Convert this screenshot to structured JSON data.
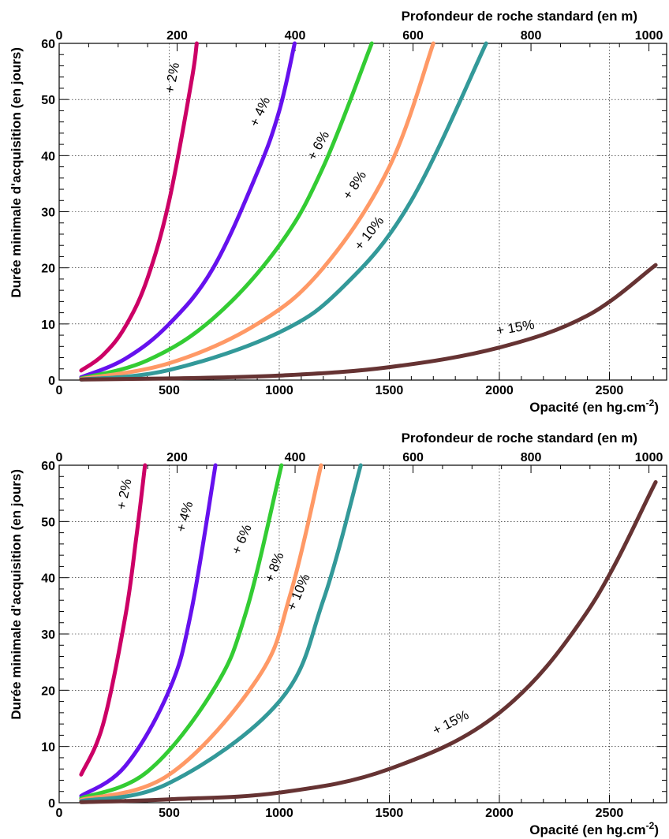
{
  "chart_data": [
    {
      "type": "line",
      "xlabel": "Opacité (en hg.cm",
      "xlabel_sup": "-2",
      "xlabel_end": ")",
      "ylabel": "Durée minimale d'acquisition (en jours)",
      "x2label": "Profondeur de roche standard (en m)",
      "xlim": [
        0,
        2760
      ],
      "ylim": [
        0,
        60
      ],
      "x2lim": [
        0,
        1030
      ],
      "xticks": [
        0,
        500,
        1000,
        1500,
        2000,
        2500
      ],
      "yticks": [
        0,
        10,
        20,
        30,
        40,
        50,
        60
      ],
      "x2ticks": [
        0,
        200,
        400,
        600,
        800,
        1000
      ],
      "grid": true,
      "series": [
        {
          "name": "+ 2%",
          "color": "#cc0066",
          "x": [
            100,
            200,
            300,
            400,
            500,
            600,
            625
          ],
          "y": [
            1.7,
            4.5,
            9.5,
            18,
            32,
            53,
            60
          ],
          "label_at": [
            520,
            51
          ]
        },
        {
          "name": "+ 4%",
          "color": "#6611ee",
          "x": [
            100,
            300,
            500,
            700,
            900,
            1000,
            1070
          ],
          "y": [
            0.5,
            3.8,
            10,
            20,
            37,
            48,
            60
          ],
          "label_at": [
            900,
            45
          ]
        },
        {
          "name": "+ 6%",
          "color": "#33cc33",
          "x": [
            100,
            400,
            700,
            1000,
            1200,
            1420
          ],
          "y": [
            0.3,
            3.5,
            11,
            24,
            38,
            60
          ],
          "label_at": [
            1160,
            39
          ]
        },
        {
          "name": "+ 8%",
          "color": "#ff9966",
          "x": [
            100,
            500,
            900,
            1200,
            1500,
            1700
          ],
          "y": [
            0.2,
            3,
            10,
            20,
            38,
            60
          ],
          "label_at": [
            1320,
            32
          ]
        },
        {
          "name": "+ 10%",
          "color": "#339999",
          "x": [
            100,
            500,
            1000,
            1300,
            1600,
            1940
          ],
          "y": [
            0.1,
            1.8,
            8.5,
            17,
            32,
            60
          ],
          "label_at": [
            1370,
            23
          ]
        },
        {
          "name": "+ 15%",
          "color": "#663333",
          "x": [
            100,
            500,
            1000,
            1500,
            2000,
            2400,
            2710
          ],
          "y": [
            0.1,
            0.3,
            0.8,
            2.3,
            5.8,
            11.5,
            20.5
          ],
          "label_at": [
            1990,
            8
          ]
        }
      ]
    },
    {
      "type": "line",
      "xlabel": "Opacité (en hg.cm",
      "xlabel_sup": "-2",
      "xlabel_end": ")",
      "ylabel": "Durée minimale d'acquisition (en jours)",
      "x2label": "Profondeur de roche standard (en m)",
      "xlim": [
        0,
        2760
      ],
      "ylim": [
        0,
        60
      ],
      "x2lim": [
        0,
        1030
      ],
      "xticks": [
        0,
        500,
        1000,
        1500,
        2000,
        2500
      ],
      "yticks": [
        0,
        10,
        20,
        30,
        40,
        50,
        60
      ],
      "x2ticks": [
        0,
        200,
        400,
        600,
        800,
        1000
      ],
      "grid": true,
      "series": [
        {
          "name": "+ 2%",
          "color": "#cc0066",
          "x": [
            100,
            200,
            300,
            350,
            390
          ],
          "y": [
            5,
            14,
            33,
            47,
            60
          ],
          "label_at": [
            300,
            52
          ]
        },
        {
          "name": "+ 4%",
          "color": "#6611ee",
          "x": [
            100,
            300,
            500,
            600,
            710
          ],
          "y": [
            1.2,
            6.5,
            20,
            34,
            60
          ],
          "label_at": [
            570,
            48
          ]
        },
        {
          "name": "+ 6%",
          "color": "#33cc33",
          "x": [
            100,
            400,
            700,
            850,
            1010
          ],
          "y": [
            0.8,
            5.5,
            20,
            34,
            60
          ],
          "label_at": [
            820,
            44
          ]
        },
        {
          "name": "+ 8%",
          "color": "#ff9966",
          "x": [
            100,
            500,
            900,
            1050,
            1190
          ],
          "y": [
            0.5,
            5,
            22,
            37,
            60
          ],
          "label_at": [
            970,
            39
          ]
        },
        {
          "name": "+ 10%",
          "color": "#339999",
          "x": [
            100,
            500,
            1000,
            1200,
            1370
          ],
          "y": [
            0.3,
            3.5,
            18,
            36,
            60
          ],
          "label_at": [
            1070,
            34
          ]
        },
        {
          "name": "+ 15%",
          "color": "#663333",
          "x": [
            100,
            500,
            1000,
            1500,
            2000,
            2400,
            2710
          ],
          "y": [
            0.1,
            0.6,
            1.8,
            6,
            16,
            34,
            57
          ],
          "label_at": [
            1710,
            12
          ]
        }
      ]
    }
  ]
}
